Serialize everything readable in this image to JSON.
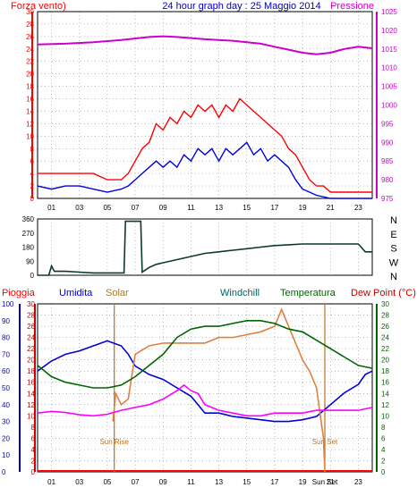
{
  "chart_data": [
    {
      "type": "line",
      "title": "24 hour graph day : 25 Maggio 2014",
      "x_ticks": [
        "01",
        "03",
        "05",
        "07",
        "09",
        "11",
        "13",
        "15",
        "17",
        "19",
        "21",
        "23"
      ],
      "xlim": [
        0,
        24
      ],
      "grid": true,
      "left_axis": {
        "label": "Forza vento)",
        "ylim": [
          0,
          30
        ],
        "ticks": [
          0,
          2,
          4,
          6,
          8,
          10,
          12,
          14,
          16,
          18,
          20,
          22,
          24,
          26,
          28,
          30
        ],
        "color": "#ff0000"
      },
      "right_axis": {
        "label": "Pressione",
        "ylim": [
          975,
          1025
        ],
        "ticks": [
          975,
          980,
          985,
          990,
          995,
          1000,
          1005,
          1010,
          1015,
          1020,
          1025
        ],
        "color": "#cc00cc"
      },
      "series": [
        {
          "axis": "left",
          "color": "#ff0000",
          "x": [
            0,
            2,
            4,
            5,
            6,
            6.5,
            7,
            7.5,
            8,
            8.5,
            9,
            9.5,
            10,
            10.5,
            11,
            11.5,
            12,
            12.5,
            13,
            13.5,
            14,
            14.5,
            15,
            15.5,
            16,
            16.5,
            17,
            17.5,
            18,
            18.5,
            19,
            19.5,
            20,
            20.5,
            21,
            22,
            23,
            24
          ],
          "values": [
            4,
            4,
            4,
            3,
            3,
            4,
            6,
            8,
            9,
            12,
            11,
            13,
            12,
            14,
            13,
            15,
            14,
            15,
            13,
            15,
            14,
            16,
            15,
            14,
            13,
            12,
            11,
            10,
            8,
            7,
            5,
            3,
            2,
            2,
            1,
            1,
            1,
            1
          ]
        },
        {
          "axis": "left",
          "color": "#0000dd",
          "x": [
            0,
            1,
            2,
            3,
            4,
            5,
            6,
            6.5,
            7,
            7.5,
            8,
            8.5,
            9,
            9.5,
            10,
            10.5,
            11,
            11.5,
            12,
            12.5,
            13,
            13.5,
            14,
            14.5,
            15,
            15.5,
            16,
            16.5,
            17,
            17.5,
            18,
            18.5,
            19,
            19.5,
            20,
            21,
            22,
            23,
            24
          ],
          "values": [
            2,
            1.5,
            2,
            2,
            1.5,
            1,
            1.5,
            2,
            3,
            4,
            5,
            6,
            5,
            6,
            5,
            7,
            6,
            8,
            7,
            8,
            6,
            8,
            7,
            8,
            9,
            7,
            8,
            6,
            7,
            6,
            5,
            3,
            1.5,
            1,
            0.5,
            0,
            0,
            0,
            0
          ]
        },
        {
          "axis": "right",
          "color": "#cc00cc",
          "x": [
            0,
            2,
            4,
            6,
            8,
            9,
            10,
            12,
            14,
            16,
            17,
            18,
            19,
            20,
            21,
            22,
            23,
            24
          ],
          "values": [
            1016.2,
            1016.4,
            1016.8,
            1017.4,
            1018.2,
            1018.4,
            1018.2,
            1017.6,
            1017.2,
            1016.4,
            1015.6,
            1014.8,
            1014.0,
            1013.6,
            1014.0,
            1015.0,
            1015.6,
            1015.2
          ]
        }
      ]
    },
    {
      "type": "line",
      "x_ticks": [],
      "xlim": [
        0,
        24
      ],
      "ylim": [
        0,
        360
      ],
      "ticks": [
        0,
        90,
        180,
        270,
        360
      ],
      "right_labels": [
        "N",
        "W",
        "S",
        "E",
        "N"
      ],
      "series": [
        {
          "color": "#0b3a2c",
          "x": [
            0,
            0.8,
            1.0,
            1.2,
            2.0,
            3.0,
            4.0,
            5.0,
            6.0,
            6.2,
            6.3,
            7.4,
            7.5,
            8.0,
            8.5,
            9.0,
            10,
            11,
            12,
            13,
            14,
            15,
            16,
            17,
            18,
            19,
            20,
            21,
            22,
            23,
            23.5,
            24
          ],
          "values": [
            0,
            0,
            60,
            25,
            25,
            20,
            15,
            15,
            15,
            15,
            345,
            345,
            20,
            50,
            70,
            80,
            100,
            120,
            140,
            150,
            160,
            170,
            180,
            190,
            195,
            200,
            200,
            200,
            200,
            200,
            150,
            150
          ]
        }
      ]
    },
    {
      "type": "line",
      "x_ticks": [
        "01",
        "03",
        "05",
        "07",
        "09",
        "11",
        "13",
        "15",
        "17",
        "19",
        "21",
        "23"
      ],
      "x_extra_label": "Sun Set",
      "xlim": [
        0,
        24
      ],
      "grid": true,
      "legend": [
        "Pioggia",
        "Umidita",
        "Solar",
        "Windchill",
        "Temperatura",
        "Dew Point (°C)"
      ],
      "axes": {
        "rain": {
          "label": "Pioggia",
          "ylim": [
            0,
            100
          ],
          "ticks": [
            0,
            10,
            20,
            30,
            40,
            50,
            60,
            70,
            80,
            90,
            100
          ],
          "color": "#0000cc"
        },
        "humidity": {
          "label": "Umidita",
          "ylim": [
            0,
            30
          ],
          "ticks": [
            0,
            2,
            4,
            6,
            8,
            10,
            12,
            14,
            16,
            18,
            20,
            22,
            24,
            26,
            28,
            30
          ],
          "color": "#cc0000"
        },
        "temp": {
          "label": "Temperatura",
          "ylim": [
            0,
            30
          ],
          "ticks": [
            0,
            2,
            4,
            6,
            8,
            10,
            12,
            14,
            16,
            18,
            20,
            22,
            24,
            26,
            28,
            30
          ],
          "color": "#006600"
        }
      },
      "annotations": [
        {
          "text": "Sun Rise",
          "x": 5.5,
          "color": "#c07020"
        },
        {
          "text": "Sun Set",
          "x": 20.6,
          "color": "#c07020"
        }
      ],
      "series": [
        {
          "name": "Umidita",
          "color": "#0000dd",
          "x": [
            0,
            1,
            2,
            3,
            4,
            5,
            6,
            6.5,
            7,
            8,
            9,
            10,
            11,
            11.5,
            12,
            13,
            14,
            15,
            16,
            17,
            18,
            19,
            20,
            21,
            22,
            23,
            23.5,
            24
          ],
          "values": [
            60,
            66,
            70,
            72,
            75,
            78,
            75,
            70,
            63,
            58,
            55,
            50,
            45,
            40,
            35,
            35,
            33,
            32,
            31,
            30,
            30,
            31,
            33,
            40,
            47,
            52,
            58,
            60
          ]
        },
        {
          "name": "Solar",
          "color": "#e08040",
          "x": [
            5.4,
            5.6,
            6.0,
            6.5,
            7.0,
            8.0,
            9.0,
            10,
            11,
            12,
            13,
            14,
            15,
            16,
            17,
            17.5,
            18,
            18.5,
            19,
            19.5,
            20,
            20.5,
            20.6
          ],
          "values": [
            9,
            14,
            12,
            13,
            21,
            22.5,
            23,
            23,
            23,
            23,
            24,
            24,
            24.5,
            25,
            26,
            29,
            26,
            23,
            20,
            18,
            15,
            6,
            0
          ]
        },
        {
          "name": "Windchill",
          "color": "#006600",
          "x": [
            0,
            1,
            2,
            3,
            4,
            5,
            6,
            7,
            8,
            9,
            10,
            11,
            12,
            13,
            14,
            15,
            16,
            17,
            18,
            19,
            20,
            21,
            22,
            23,
            24
          ],
          "values": [
            19,
            17,
            16,
            15.5,
            15,
            15,
            15.5,
            17,
            19,
            21,
            24,
            25.5,
            26,
            26,
            26.5,
            27,
            27,
            26.5,
            25.5,
            25,
            23.5,
            22,
            20.5,
            19,
            18.5
          ]
        },
        {
          "name": "Dew Point (°C)",
          "color": "#ff00ff",
          "x": [
            0,
            1,
            2,
            3,
            4,
            5,
            6,
            7,
            8,
            9,
            10,
            10.5,
            11,
            11.5,
            12,
            13,
            14,
            15,
            16,
            17,
            18,
            19,
            20,
            21,
            22,
            23,
            24
          ],
          "values": [
            10.5,
            10.8,
            10.6,
            10.2,
            10,
            10.3,
            11,
            11.5,
            12,
            13,
            14.5,
            15.5,
            14.5,
            14,
            12,
            11,
            10.5,
            10,
            10,
            10.5,
            10.5,
            10.5,
            11,
            11,
            11,
            11,
            11.5
          ]
        }
      ]
    }
  ]
}
